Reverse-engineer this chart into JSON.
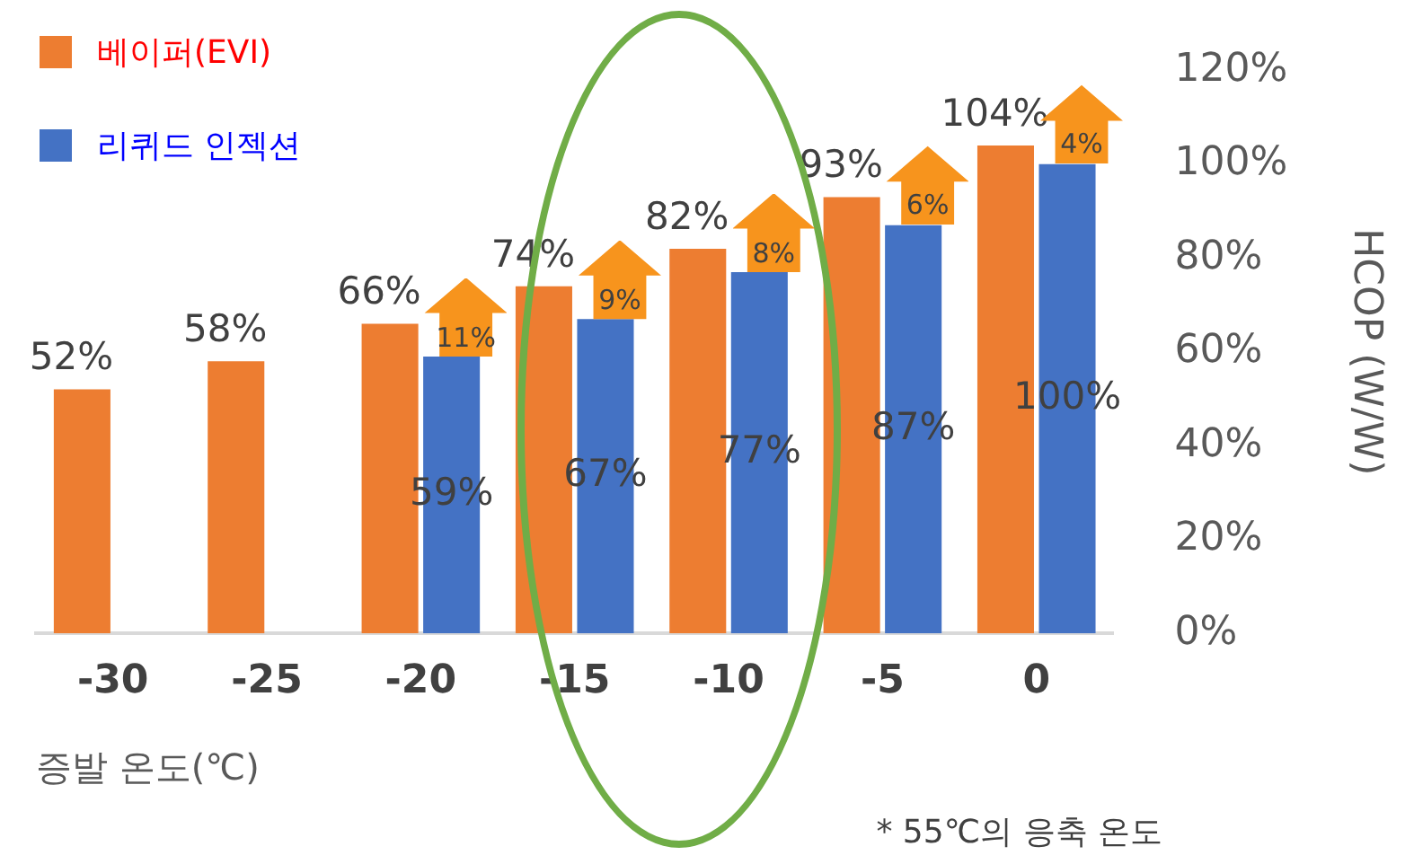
{
  "chart_data": {
    "type": "bar",
    "ylabel": "HCOP (W/W)",
    "xlabel": "증발 온도(℃)",
    "categories": [
      "-30",
      "-25",
      "-20",
      "-15",
      "-10",
      "-5",
      "0"
    ],
    "series": [
      {
        "name": "베이퍼(EVI)",
        "color": "#ed7d31",
        "values": [
          52,
          58,
          66,
          74,
          82,
          93,
          104
        ],
        "value_labels": [
          "52%",
          "58%",
          "66%",
          "74%",
          "82%",
          "93%",
          "104%"
        ]
      },
      {
        "name": "리퀴드 인젝션",
        "color": "#4472c4",
        "values": [
          null,
          null,
          59,
          67,
          77,
          87,
          100
        ],
        "value_labels": [
          null,
          null,
          "59%",
          "67%",
          "77%",
          "87%",
          "100%"
        ]
      }
    ],
    "ylim": [
      0,
      120
    ],
    "yticks": [
      {
        "value": 0,
        "label": "0%"
      },
      {
        "value": 20,
        "label": "20%"
      },
      {
        "value": 40,
        "label": "40%"
      },
      {
        "value": 60,
        "label": "60%"
      },
      {
        "value": 80,
        "label": "80%"
      },
      {
        "value": 100,
        "label": "100%"
      },
      {
        "value": 120,
        "label": "120%"
      }
    ],
    "grid": false,
    "legend": "top left",
    "annotations": [
      {
        "text": "11%",
        "x": "-20",
        "y": 59
      },
      {
        "text": "9%",
        "x": "-15",
        "y": 67
      },
      {
        "text": "8%",
        "x": "-10",
        "y": 77
      },
      {
        "text": "6%",
        "x": "-5",
        "y": 87
      },
      {
        "text": "4%",
        "x": "0",
        "y": 100
      },
      "* 55℃의 응축 온도"
    ]
  }
}
